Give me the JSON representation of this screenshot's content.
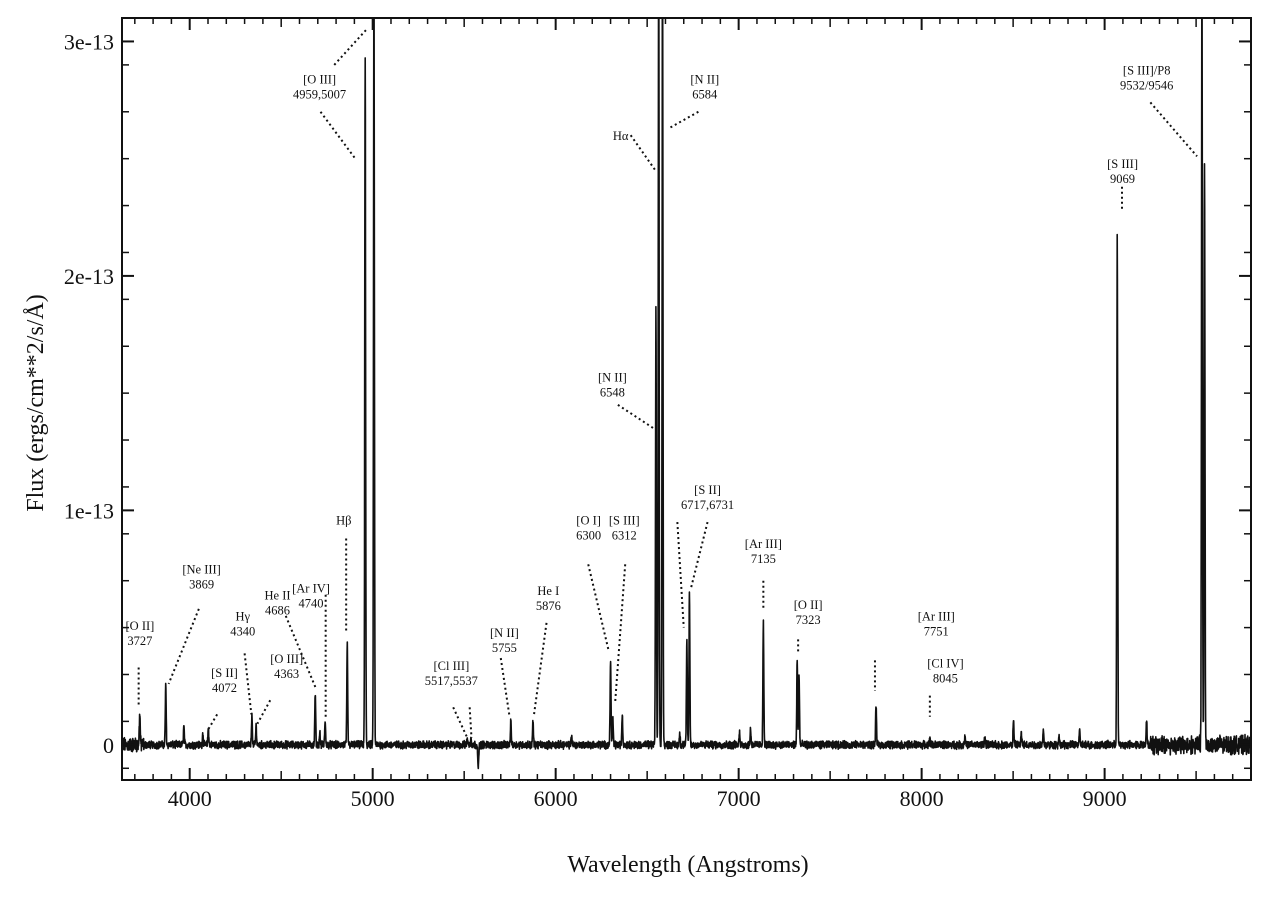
{
  "chart_data": {
    "type": "line",
    "title": "",
    "xlabel": "Wavelength (Angstroms)",
    "ylabel": "Flux (ergs/cm**2/s/Å)",
    "xlim": [
      3630,
      9800
    ],
    "ylim": [
      -1.5e-14,
      3.1e-13
    ],
    "x_ticks": [
      4000,
      5000,
      6000,
      7000,
      8000,
      9000
    ],
    "x_tick_labels": [
      "4000",
      "5000",
      "6000",
      "7000",
      "8000",
      "9000"
    ],
    "y_ticks": [
      0,
      1e-13,
      2e-13,
      3e-13
    ],
    "y_tick_labels": [
      "0",
      "1e-13",
      "2e-13",
      "3e-13"
    ],
    "grid": false,
    "series": [
      {
        "continuum": 0.0,
        "lines": [
          {
            "x": 3727,
            "y": 1.4e-14
          },
          {
            "x": 3869,
            "y": 2.5e-14
          },
          {
            "x": 3968,
            "y": 8e-15
          },
          {
            "x": 4072,
            "y": 5e-15
          },
          {
            "x": 4102,
            "y": 7e-15
          },
          {
            "x": 4340,
            "y": 1.2e-14
          },
          {
            "x": 4363,
            "y": 8e-15
          },
          {
            "x": 4686,
            "y": 2.2e-14
          },
          {
            "x": 4711,
            "y": 5e-15
          },
          {
            "x": 4740,
            "y": 1e-14
          },
          {
            "x": 4861,
            "y": 4.3e-14
          },
          {
            "x": 4959,
            "y": 2.93e-13
          },
          {
            "x": 5007,
            "y": 3.4e-13
          },
          {
            "x": 5517,
            "y": 3e-15
          },
          {
            "x": 5537,
            "y": 3e-15
          },
          {
            "x": 5577,
            "y": -1.1e-14
          },
          {
            "x": 5755,
            "y": 1e-14
          },
          {
            "x": 5876,
            "y": 1e-14
          },
          {
            "x": 6087,
            "y": 4e-15
          },
          {
            "x": 6300,
            "y": 3.7e-14
          },
          {
            "x": 6312,
            "y": 1.2e-14
          },
          {
            "x": 6364,
            "y": 1.3e-14
          },
          {
            "x": 6548,
            "y": 1.85e-13
          },
          {
            "x": 6563,
            "y": 3.4e-13
          },
          {
            "x": 6584,
            "y": 3.4e-13
          },
          {
            "x": 6678,
            "y": 5e-15
          },
          {
            "x": 6717,
            "y": 4.5e-14
          },
          {
            "x": 6731,
            "y": 6.5e-14
          },
          {
            "x": 7005,
            "y": 6e-15
          },
          {
            "x": 7065,
            "y": 7e-15
          },
          {
            "x": 7135,
            "y": 5.3e-14
          },
          {
            "x": 7320,
            "y": 3.6e-14
          },
          {
            "x": 7330,
            "y": 3e-14
          },
          {
            "x": 7751,
            "y": 1.7e-14
          },
          {
            "x": 8045,
            "y": 3e-15
          },
          {
            "x": 8237,
            "y": 4e-15
          },
          {
            "x": 8345,
            "y": 4e-15
          },
          {
            "x": 8502,
            "y": 1e-14
          },
          {
            "x": 8545,
            "y": 5e-15
          },
          {
            "x": 8665,
            "y": 6e-15
          },
          {
            "x": 8750,
            "y": 4e-15
          },
          {
            "x": 8863,
            "y": 6e-15
          },
          {
            "x": 9069,
            "y": 2.17e-13
          },
          {
            "x": 9229,
            "y": 1.1e-14
          },
          {
            "x": 9532,
            "y": 3.4e-13
          },
          {
            "x": 9546,
            "y": 2.5e-13
          }
        ]
      }
    ],
    "annotations": [
      {
        "name": "[O II]",
        "wave": "3727",
        "text_x": 3728,
        "text_y": 4.9e-14,
        "line_top": [
          3721,
          3.3e-14
        ],
        "line_bottom": [
          3721,
          1.6e-14
        ]
      },
      {
        "name": "[Ne III]",
        "wave": "3869",
        "text_x": 4065,
        "text_y": 7.3e-14,
        "line_top": [
          4050,
          5.8e-14
        ],
        "line_bottom": [
          3885,
          2.6e-14
        ]
      },
      {
        "name": "[S II]",
        "wave": "4072",
        "text_x": 4190,
        "text_y": 2.9e-14,
        "line_top": [
          4150,
          1.3e-14
        ],
        "line_bottom": [
          4097,
          6e-15
        ]
      },
      {
        "name": "Hγ",
        "wave": "4340",
        "text_x": 4290,
        "text_y": 5.3e-14,
        "line_top": [
          4300,
          3.9e-14
        ],
        "line_bottom": [
          4337,
          1.3e-14
        ]
      },
      {
        "name": "He II",
        "wave": "4686",
        "text_x": 4480,
        "text_y": 6.2e-14,
        "line_top": [
          4525,
          5.5e-14
        ],
        "line_bottom": [
          4690,
          2.4e-14
        ]
      },
      {
        "name": "[O III]",
        "wave": "4363",
        "text_x": 4530,
        "text_y": 3.5e-14,
        "line_top": [
          4440,
          1.9e-14
        ],
        "line_bottom": [
          4370,
          9e-15
        ]
      },
      {
        "name": "[Ar IV]",
        "wave": "4740",
        "text_x": 4663,
        "text_y": 6.5e-14,
        "line_top": [
          4743,
          6.4e-14
        ],
        "line_bottom": [
          4743,
          1.2e-14
        ]
      },
      {
        "name": "Hβ",
        "wave": "",
        "text_x": 4842,
        "text_y": 9.4e-14,
        "line_top": [
          4855,
          8.8e-14
        ],
        "line_bottom": [
          4855,
          4.8e-14
        ]
      },
      {
        "name": "[O III]",
        "wave": "4959,5007",
        "text_x": 4710,
        "text_y": 2.82e-13,
        "line_top": [
          4790,
          2.9e-13
        ],
        "line_bottom": [
          4965,
          3.05e-13
        ],
        "line2_top": [
          4715,
          2.7e-13
        ],
        "line2_bottom": [
          4905,
          2.5e-13
        ]
      },
      {
        "name": "[Cl III]",
        "wave": "5517,5537",
        "text_x": 5430,
        "text_y": 3.2e-14,
        "line_top": [
          5440,
          1.6e-14
        ],
        "line_bottom": [
          5517,
          3e-15
        ],
        "line2_top": [
          5530,
          1.6e-14
        ],
        "line2_bottom": [
          5540,
          3e-15
        ]
      },
      {
        "name": "[N II]",
        "wave": "5755",
        "text_x": 5720,
        "text_y": 4.6e-14,
        "line_top": [
          5700,
          3.7e-14
        ],
        "line_bottom": [
          5748,
          1.2e-14
        ]
      },
      {
        "name": "He I",
        "wave": "5876",
        "text_x": 5960,
        "text_y": 6.4e-14,
        "line_top": [
          5950,
          5.2e-14
        ],
        "line_bottom": [
          5880,
          1.2e-14
        ]
      },
      {
        "name": "[O I]",
        "wave": "6300",
        "text_x": 6180,
        "text_y": 9.4e-14,
        "line_top": [
          6178,
          7.7e-14
        ],
        "line_bottom": [
          6290,
          4e-14
        ]
      },
      {
        "name": "[S III]",
        "wave": "6312",
        "text_x": 6375,
        "text_y": 9.4e-14,
        "line_top": [
          6380,
          7.7e-14
        ],
        "line_bottom": [
          6325,
          1.8e-14
        ]
      },
      {
        "name": "[N II]",
        "wave": "6548",
        "text_x": 6310,
        "text_y": 1.55e-13,
        "line_top": [
          6340,
          1.45e-13
        ],
        "line_bottom": [
          6535,
          1.35e-13
        ]
      },
      {
        "name": "Hα",
        "wave": "",
        "text_x": 6355,
        "text_y": 2.58e-13,
        "line_top": [
          6410,
          2.6e-13
        ],
        "line_bottom": [
          6545,
          2.45e-13
        ]
      },
      {
        "name": "[N II]",
        "wave": "6584",
        "text_x": 6815,
        "text_y": 2.82e-13,
        "line_top": [
          6780,
          2.7e-13
        ],
        "line_bottom": [
          6620,
          2.63e-13
        ]
      },
      {
        "name": "[S II]",
        "wave": "6717,6731",
        "text_x": 6830,
        "text_y": 1.07e-13,
        "line_top": [
          6665,
          9.5e-14
        ],
        "line_bottom": [
          6700,
          5e-14
        ],
        "line2_top": [
          6830,
          9.5e-14
        ],
        "line2_bottom": [
          6740,
          6.7e-14
        ]
      },
      {
        "name": "[Ar III]",
        "wave": "7135",
        "text_x": 7135,
        "text_y": 8.4e-14,
        "line_top": [
          7135,
          7e-14
        ],
        "line_bottom": [
          7135,
          5.8e-14
        ]
      },
      {
        "name": "[O II]",
        "wave": "7323",
        "text_x": 7380,
        "text_y": 5.8e-14,
        "line_top": [
          7325,
          4.5e-14
        ],
        "line_bottom": [
          7325,
          3.9e-14
        ]
      },
      {
        "name": "[Ar III]",
        "wave": "7751",
        "text_x": 8080,
        "text_y": 5.3e-14,
        "line_top": [
          7745,
          3.6e-14
        ],
        "line_bottom": [
          7745,
          2.3e-14
        ]
      },
      {
        "name": "[Cl IV]",
        "wave": "8045",
        "text_x": 8130,
        "text_y": 3.3e-14,
        "line_top": [
          8045,
          2.1e-14
        ],
        "line_bottom": [
          8045,
          1.2e-14
        ]
      },
      {
        "name": "[S III]",
        "wave": "9069",
        "text_x": 9098,
        "text_y": 2.46e-13,
        "line_top": [
          9095,
          2.38e-13
        ],
        "line_bottom": [
          9095,
          2.28e-13
        ]
      },
      {
        "name": "[S III]/P8",
        "wave": "9532/9546",
        "text_x": 9230,
        "text_y": 2.86e-13,
        "line_top": [
          9250,
          2.74e-13
        ],
        "line_bottom": [
          9505,
          2.51e-13
        ]
      }
    ]
  }
}
